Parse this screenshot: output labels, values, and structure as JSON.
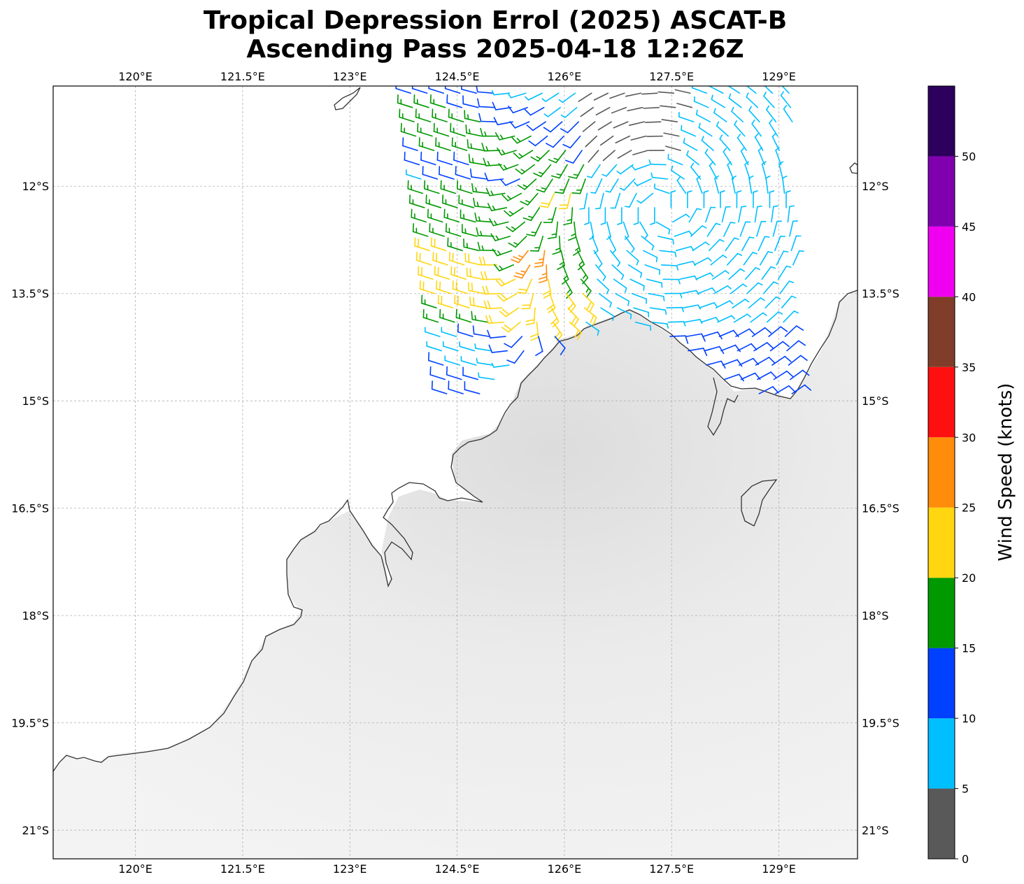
{
  "title": {
    "line1": "Tropical Depression Errol (2025) ASCAT-B",
    "line2": "Ascending Pass 2025-04-18 12:26Z"
  },
  "map": {
    "lon_range": [
      118.85,
      130.1
    ],
    "lat_range": [
      -21.4,
      -10.6
    ],
    "lon_ticks": [
      120,
      121.5,
      123,
      124.5,
      126,
      127.5,
      129
    ],
    "lon_tick_labels": [
      "120°E",
      "121.5°E",
      "123°E",
      "124.5°E",
      "126°E",
      "127.5°E",
      "129°E"
    ],
    "lat_ticks": [
      -12,
      -13.5,
      -15,
      -16.5,
      -18,
      -19.5,
      -21
    ],
    "lat_tick_labels": [
      "12°S",
      "13.5°S",
      "15°S",
      "16.5°S",
      "18°S",
      "19.5°S",
      "21°S"
    ],
    "gridlines": true,
    "basemap": "grayscale terrain over land, coastline outline"
  },
  "colorbar": {
    "label": "Wind Speed (knots)",
    "tick_values": [
      0,
      5,
      10,
      15,
      20,
      25,
      30,
      35,
      40,
      45,
      50
    ],
    "tick_labels": [
      "0",
      "5",
      "10",
      "15",
      "20",
      "25",
      "30",
      "35",
      "40",
      "45",
      "50"
    ],
    "bins": [
      {
        "min": 0,
        "max": 5,
        "color": "#595959"
      },
      {
        "min": 5,
        "max": 10,
        "color": "#00bfff"
      },
      {
        "min": 10,
        "max": 15,
        "color": "#0040ff"
      },
      {
        "min": 15,
        "max": 20,
        "color": "#009900"
      },
      {
        "min": 20,
        "max": 25,
        "color": "#ffd610"
      },
      {
        "min": 25,
        "max": 30,
        "color": "#ff8c0a"
      },
      {
        "min": 30,
        "max": 35,
        "color": "#ff1010"
      },
      {
        "min": 35,
        "max": 40,
        "color": "#803d2a"
      },
      {
        "min": 40,
        "max": 45,
        "color": "#f000f0"
      },
      {
        "min": 45,
        "max": 50,
        "color": "#8000b0"
      },
      {
        "min": 50,
        "max": 55,
        "color": "#2c005c"
      }
    ]
  },
  "wind_barbs": {
    "swath_lon_range": [
      123.8,
      129.3
    ],
    "swath_lat_range": [
      -15.0,
      -10.6
    ],
    "circulation_center": {
      "lon": 127.4,
      "lat": -12.3
    },
    "units": "knots"
  }
}
